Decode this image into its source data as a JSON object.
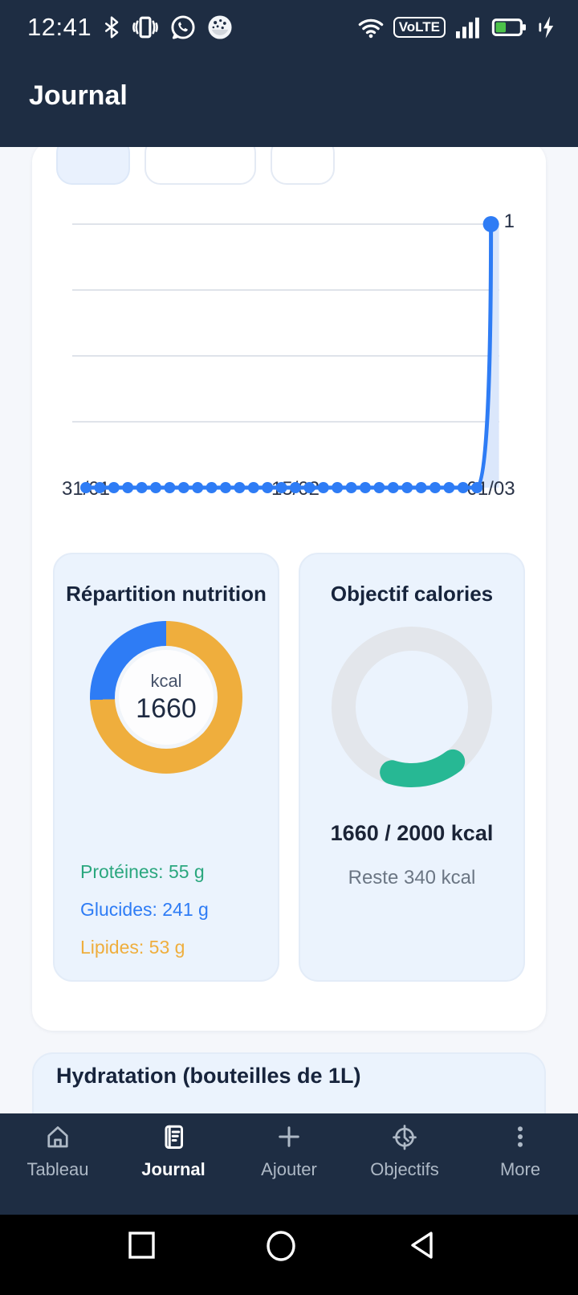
{
  "status_bar": {
    "time": "12:41",
    "left_icons": [
      "bluetooth",
      "vibrate",
      "whatsapp",
      "app-circle"
    ],
    "right_icons": [
      "wifi",
      "volte",
      "signal",
      "battery",
      "charging"
    ],
    "volte_label": "VoLTE",
    "battery_fill_pct": 40
  },
  "header": {
    "title": "Journal"
  },
  "period_chips": [
    {
      "label": "",
      "selected": true
    },
    {
      "label": "",
      "selected": false
    },
    {
      "label": "",
      "selected": false
    }
  ],
  "chart_data": [
    {
      "type": "line",
      "title": "",
      "xlabel": "",
      "ylabel": "",
      "ylim": [
        0,
        1
      ],
      "gridline_values": [
        0.25,
        0.5,
        0.75,
        1
      ],
      "x_ticks": [
        {
          "index": 0,
          "label": "31/01"
        },
        {
          "index": 15,
          "label": "15/02"
        },
        {
          "index": 29,
          "label": "01/03"
        }
      ],
      "series": [
        {
          "name": "entrees-journal",
          "values": [
            0,
            0,
            0,
            0,
            0,
            0,
            0,
            0,
            0,
            0,
            0,
            0,
            0,
            0,
            0,
            0,
            0,
            0,
            0,
            0,
            0,
            0,
            0,
            0,
            0,
            0,
            0,
            0,
            0,
            1
          ]
        }
      ],
      "point_label": "1",
      "line_color": "#2e7cf5",
      "fill_color": "#dbe7fb"
    },
    {
      "type": "pie",
      "title": "Répartition nutrition",
      "center_label": "kcal",
      "center_value": "1660",
      "macros": {
        "proteines_g": 55,
        "glucides_g": 241,
        "lipides_g": 53
      },
      "visual_segments": [
        {
          "color": "#2e7cf5",
          "sweep_deg": 92
        },
        {
          "color": "#efae3d",
          "sweep_deg": 268
        }
      ],
      "start_deg": 268
    },
    {
      "type": "progress-ring",
      "title": "Objectif calories",
      "current_kcal": 1660,
      "goal_kcal": 2000,
      "remaining_kcal": 340,
      "arc_start_deg": 143,
      "arc_end_deg": 197,
      "track_color": "#e3e6eb",
      "progress_color": "#27b894"
    }
  ],
  "nutrition_card": {
    "title": "Répartition nutrition",
    "center_label": "kcal",
    "center_value": "1660",
    "legend": [
      {
        "label": "Protéines: 55 g",
        "color": "#2aa77e"
      },
      {
        "label": "Glucides: 241 g",
        "color": "#2e7cf5"
      },
      {
        "label": "Lipides: 53 g",
        "color": "#efae3d"
      }
    ]
  },
  "calories_card": {
    "title": "Objectif calories",
    "progress_text": "1660 / 2000 kcal",
    "remaining_text": "Reste 340 kcal"
  },
  "hydration_card": {
    "title": "Hydratation (bouteilles de 1L)"
  },
  "bottom_nav": {
    "items": [
      {
        "label": "Tableau",
        "icon": "home",
        "active": false
      },
      {
        "label": "Journal",
        "icon": "journal",
        "active": true
      },
      {
        "label": "Ajouter",
        "icon": "plus",
        "active": false
      },
      {
        "label": "Objectifs",
        "icon": "target-clock",
        "active": false
      },
      {
        "label": "More",
        "icon": "more-vertical",
        "active": false
      }
    ]
  },
  "android_nav": {
    "buttons": [
      "recents-square",
      "home-circle",
      "back-triangle"
    ]
  },
  "colors": {
    "header_navy": "#1e2d43",
    "page_bg": "#f5f7fb",
    "card_bg": "#ebf3fd",
    "accent_blue": "#2e7cf5",
    "accent_orange": "#efae3d",
    "accent_teal": "#27b894",
    "battery_green": "#4cc24a"
  }
}
